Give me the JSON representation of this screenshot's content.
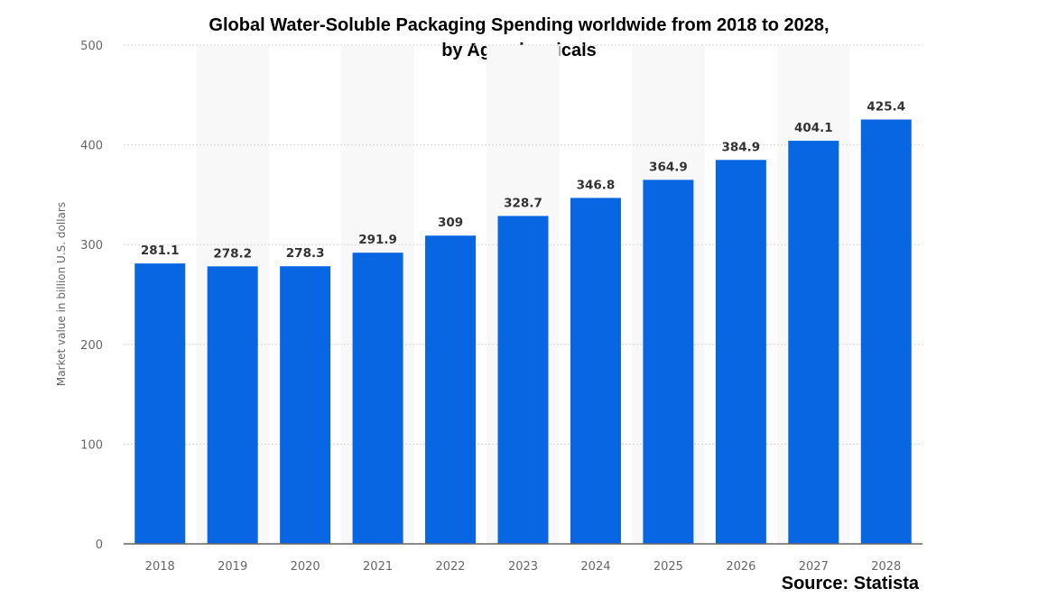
{
  "chart_data": {
    "type": "bar",
    "title_line1": "Global Water-Soluble Packaging Spending worldwide from 2018 to 2028,",
    "title_line2": "by Agrochemicals",
    "categories": [
      "2018",
      "2019",
      "2020",
      "2021",
      "2022",
      "2023",
      "2024",
      "2025",
      "2026",
      "2027",
      "2028"
    ],
    "values": [
      281.1,
      278.2,
      278.3,
      291.9,
      309,
      328.7,
      346.8,
      364.9,
      384.9,
      404.1,
      425.4
    ],
    "value_labels": [
      "281.1",
      "278.2",
      "278.3",
      "291.9",
      "309",
      "328.7",
      "346.8",
      "364.9",
      "384.9",
      "404.1",
      "425.4"
    ],
    "xlabel": "",
    "ylabel": "Market value in billion U.S. dollars",
    "ylim": [
      0,
      500
    ],
    "yticks": [
      "0",
      "100",
      "200",
      "300",
      "400",
      "500"
    ],
    "grid": true,
    "source": "Source: Statista",
    "colors": {
      "bar": "#0866e3",
      "band": "#f8f8f8",
      "grid": "#d6d6d6"
    }
  }
}
